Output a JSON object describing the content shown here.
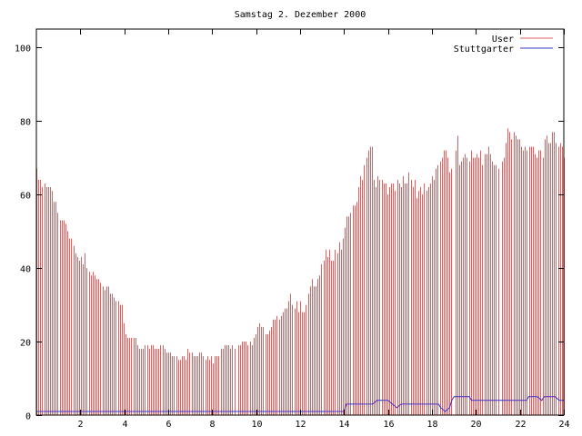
{
  "chart_data": {
    "type": "impulse+line",
    "title": "Samstag 2. Dezember 2000",
    "xlabel": "",
    "ylabel": "",
    "xlim": [
      0,
      24
    ],
    "ylim": [
      0,
      105
    ],
    "x_ticks": [
      2,
      4,
      6,
      8,
      10,
      12,
      14,
      16,
      18,
      20,
      22,
      24
    ],
    "y_ticks": [
      0,
      20,
      40,
      60,
      80,
      100
    ],
    "grid": false,
    "legend_position": "top-right",
    "colors": {
      "user": "#e06060",
      "stuttgarter": "#3333cc",
      "axes": "#000000"
    },
    "sample_step_hours": 0.0833,
    "series": [
      {
        "name": "User",
        "style": "impulses",
        "values": [
          67,
          64,
          64,
          62,
          63,
          62,
          62,
          62,
          61,
          58,
          58,
          55,
          53,
          53,
          53,
          52,
          50,
          48,
          48,
          46,
          44,
          43,
          42,
          43,
          41,
          44,
          40,
          39,
          38,
          39,
          38,
          37,
          37,
          36,
          35,
          34,
          35,
          35,
          33,
          33,
          32,
          31,
          31,
          30,
          30,
          25,
          22,
          21,
          21,
          21,
          21,
          21,
          19,
          18,
          18,
          18,
          19,
          19,
          18,
          19,
          19,
          18,
          18,
          18,
          19,
          19,
          18,
          17,
          17,
          17,
          16,
          16,
          16,
          15,
          15,
          16,
          16,
          15,
          18,
          17,
          17,
          16,
          16,
          16,
          17,
          17,
          16,
          15,
          16,
          15,
          16,
          14,
          16,
          16,
          16,
          18,
          18,
          19,
          19,
          19,
          18,
          19,
          18,
          17,
          19,
          19,
          20,
          20,
          20,
          19,
          20,
          19,
          21,
          22,
          24,
          25,
          24,
          24,
          22,
          22,
          23,
          24,
          26,
          26,
          27,
          26,
          27,
          28,
          29,
          29,
          31,
          33,
          30,
          29,
          31,
          28,
          31,
          28,
          28,
          30,
          33,
          35,
          37,
          35,
          35,
          37,
          38,
          41,
          42,
          45,
          43,
          45,
          42,
          42,
          45,
          44,
          47,
          45,
          48,
          51,
          54,
          54,
          55,
          57,
          57,
          58,
          62,
          65,
          64,
          68,
          70,
          72,
          73,
          73,
          64,
          62,
          65,
          64,
          64,
          63,
          63,
          60,
          62,
          63,
          63,
          61,
          64,
          63,
          62,
          65,
          63,
          63,
          66,
          64,
          62,
          64,
          59,
          61,
          62,
          60,
          63,
          61,
          62,
          63,
          65,
          64,
          67,
          68,
          69,
          70,
          72,
          72,
          70,
          66,
          67,
          70,
          72,
          76,
          68,
          69,
          70,
          71,
          70,
          69,
          72,
          70,
          70,
          71,
          70,
          72,
          68,
          71,
          71,
          73,
          71,
          69,
          68,
          68,
          67,
          67,
          69,
          70,
          74,
          78,
          77,
          75,
          77,
          76,
          75,
          75,
          73,
          72,
          73,
          72,
          73,
          73,
          73,
          71,
          70,
          72,
          72,
          70,
          75,
          76,
          74,
          74,
          77,
          77,
          74,
          73,
          74,
          73,
          70
        ],
        "gaps": [
          [
            9.05,
            9.1
          ],
          [
            15.2,
            15.25
          ],
          [
            18.95,
            19.0
          ],
          [
            21.05,
            21.1
          ]
        ]
      },
      {
        "name": "Stuttgarter",
        "style": "line",
        "points": [
          [
            0,
            1
          ],
          [
            14.0,
            1
          ],
          [
            14.1,
            3
          ],
          [
            15.3,
            3
          ],
          [
            15.5,
            4
          ],
          [
            16.0,
            4
          ],
          [
            16.2,
            3
          ],
          [
            16.4,
            2
          ],
          [
            16.6,
            3
          ],
          [
            18.3,
            3
          ],
          [
            18.4,
            2
          ],
          [
            18.6,
            1
          ],
          [
            18.8,
            2
          ],
          [
            18.9,
            4
          ],
          [
            19.0,
            5
          ],
          [
            19.7,
            5
          ],
          [
            19.8,
            4
          ],
          [
            22.3,
            4
          ],
          [
            22.4,
            5
          ],
          [
            22.8,
            5
          ],
          [
            23.0,
            4
          ],
          [
            23.1,
            5
          ],
          [
            23.6,
            5
          ],
          [
            23.8,
            4
          ],
          [
            24.0,
            4
          ]
        ]
      }
    ]
  }
}
